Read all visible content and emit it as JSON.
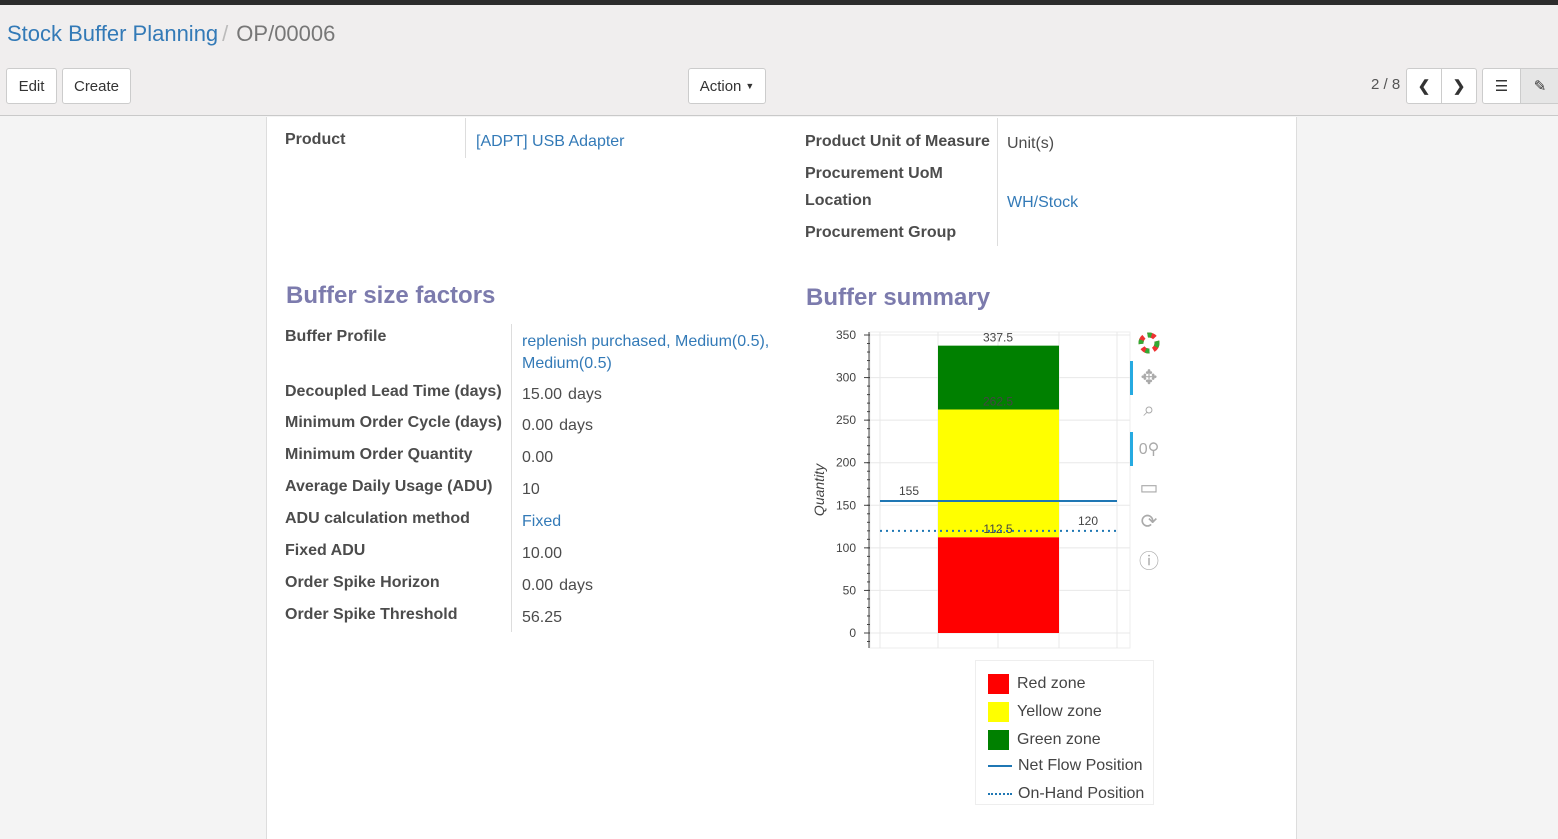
{
  "breadcrumb": {
    "parent": "Stock Buffer Planning",
    "current": "OP/00006"
  },
  "toolbar": {
    "edit": "Edit",
    "create": "Create",
    "action": "Action",
    "pager": "2 / 8"
  },
  "form": {
    "product_label": "Product",
    "product_value": "[ADPT] USB Adapter",
    "uom_label": "Product Unit of Measure",
    "uom_value": "Unit(s)",
    "proc_uom_label": "Procurement UoM",
    "location_label": "Location",
    "location_value": "WH/Stock",
    "proc_group_label": "Procurement Group"
  },
  "factors": {
    "title": "Buffer size factors",
    "rows": [
      {
        "label": "Buffer Profile",
        "value": "replenish purchased, Medium(0.5), Medium(0.5)",
        "link": true
      },
      {
        "label": "Decoupled Lead Time (days)",
        "value": "15.00",
        "unit": "days"
      },
      {
        "label": "Minimum Order Cycle (days)",
        "value": "0.00",
        "unit": "days"
      },
      {
        "label": "Minimum Order Quantity",
        "value": "0.00"
      },
      {
        "label": "Average Daily Usage (ADU)",
        "value": "10"
      },
      {
        "label": "ADU calculation method",
        "value": "Fixed",
        "link": true
      },
      {
        "label": "Fixed ADU",
        "value": "10.00"
      },
      {
        "label": "Order Spike Horizon",
        "value": "0.00",
        "unit": "days"
      },
      {
        "label": "Order Spike Threshold",
        "value": "56.25"
      }
    ]
  },
  "summary": {
    "title": "Buffer summary"
  },
  "chart_data": {
    "type": "bar",
    "ylabel": "Quantity",
    "ylim": [
      -10,
      355
    ],
    "yticks": [
      0,
      50,
      100,
      150,
      200,
      250,
      300,
      350
    ],
    "grid": true,
    "stacked_zones": [
      {
        "name": "Red zone",
        "from": 0,
        "to": 112.5,
        "color": "#ff0000"
      },
      {
        "name": "Yellow zone",
        "from": 112.5,
        "to": 262.5,
        "color": "#ffff00"
      },
      {
        "name": "Green zone",
        "from": 262.5,
        "to": 337.5,
        "color": "#008000"
      }
    ],
    "zone_labels": [
      "112.5",
      "262.5",
      "337.5"
    ],
    "lines": [
      {
        "name": "Net Flow Position",
        "value": 155,
        "label": "155",
        "style": "solid",
        "color": "#1f77b4"
      },
      {
        "name": "On-Hand Position",
        "value": 120,
        "label": "120",
        "style": "dotted",
        "color": "#1f77b4"
      }
    ],
    "legend_position": "bottom-right"
  }
}
